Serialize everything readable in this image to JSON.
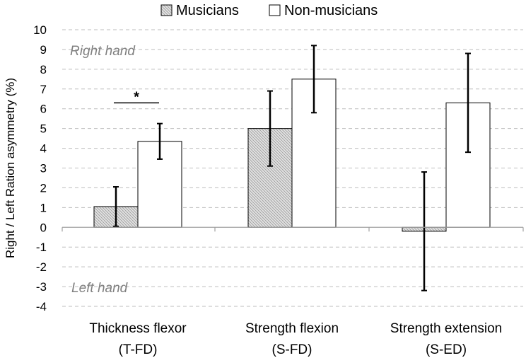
{
  "chart_data": {
    "type": "bar",
    "categories": [
      [
        "Thickness flexor",
        "(T-FD)"
      ],
      [
        "Strength flexion",
        "(S-FD)"
      ],
      [
        "Strength extension",
        "(S-ED)"
      ]
    ],
    "series": [
      {
        "name": "Musicians",
        "values": [
          1.05,
          5.0,
          -0.2
        ],
        "error": [
          1.0,
          1.9,
          3.0
        ],
        "pattern": "hatched",
        "color": "#b0b0b0"
      },
      {
        "name": "Non-musicians",
        "values": [
          4.35,
          7.5,
          6.3
        ],
        "error": [
          0.9,
          1.7,
          2.5
        ],
        "pattern": "solid",
        "color": "#ffffff"
      }
    ],
    "ylabel": "Right / Left Ration asymmetry (%)",
    "ylim": [
      -4,
      10
    ],
    "yticks": [
      -4,
      -3,
      -2,
      -1,
      0,
      1,
      2,
      3,
      4,
      5,
      6,
      7,
      8,
      9,
      10
    ],
    "grid": "dashed-horizontal",
    "legend_position": "top",
    "annotations": {
      "upper": "Right hand",
      "lower": "Left hand",
      "significance": "*"
    }
  }
}
